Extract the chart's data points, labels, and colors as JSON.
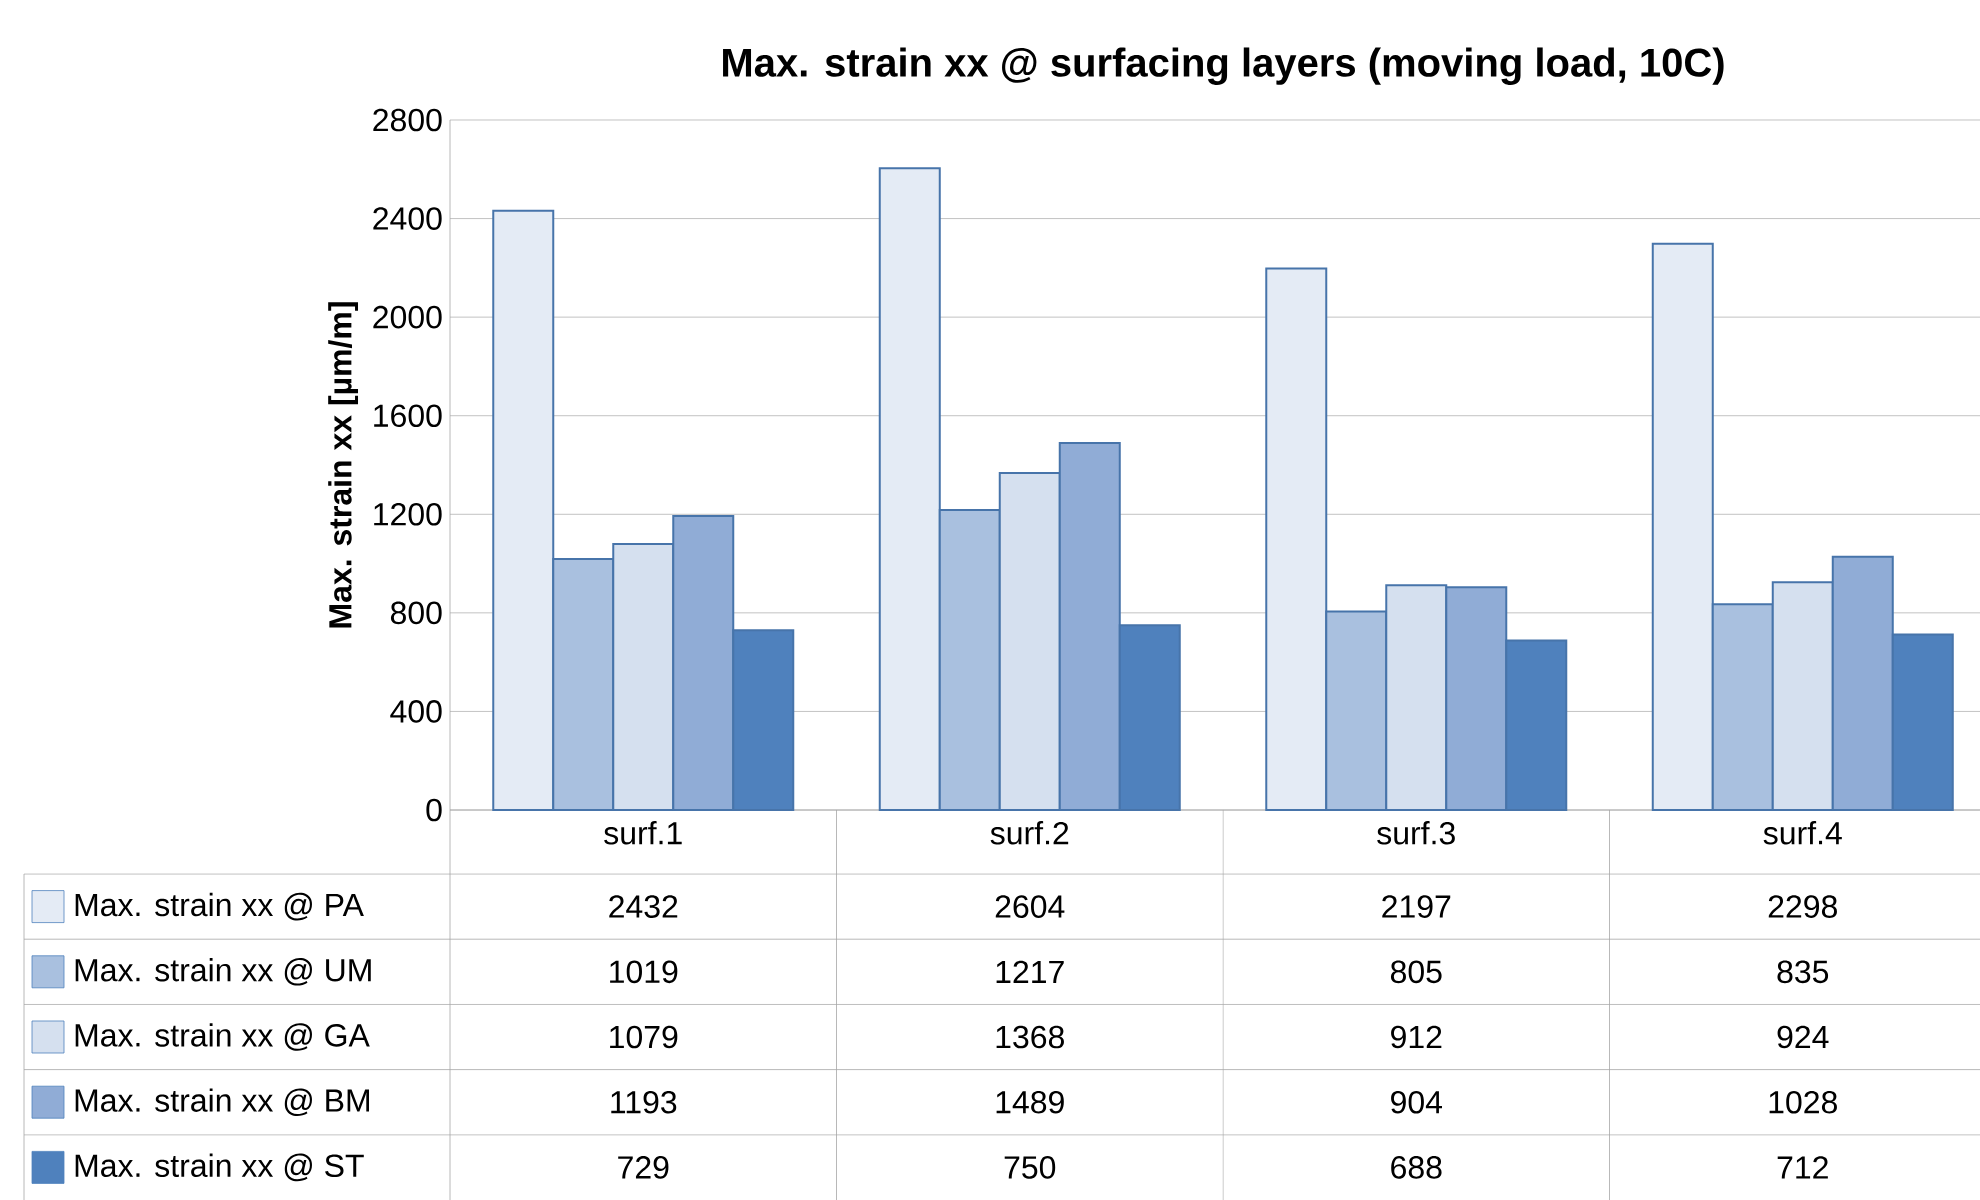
{
  "chart_data": {
    "type": "bar",
    "title": "Max. strain xx @ surfacing layers (moving load, 10C)",
    "ylabel": "Max. strain xx [µm/m]",
    "categories": [
      "surf.1",
      "surf.2",
      "surf.3",
      "surf.4"
    ],
    "series": [
      {
        "name": "Max. strain xx @ PA",
        "color": "#e4ebf5",
        "values": [
          2432,
          2604,
          2197,
          2298
        ]
      },
      {
        "name": "Max. strain xx @ UM",
        "color": "#a9c0df",
        "values": [
          1019,
          1217,
          805,
          835
        ]
      },
      {
        "name": "Max. strain xx @ GA",
        "color": "#d5e0ef",
        "values": [
          1079,
          1368,
          912,
          924
        ]
      },
      {
        "name": "Max. strain xx @ BM",
        "color": "#90acd6",
        "values": [
          1193,
          1489,
          904,
          1028
        ]
      },
      {
        "name": "Max. strain xx @ ST",
        "color": "#4f81bd",
        "values": [
          729,
          750,
          688,
          712
        ]
      }
    ],
    "ylim": [
      0,
      2800
    ],
    "yticks": [
      0,
      400,
      800,
      1200,
      1600,
      2000,
      2400,
      2800
    ],
    "grid": "y",
    "legend": "bottom",
    "data_labels": true
  }
}
